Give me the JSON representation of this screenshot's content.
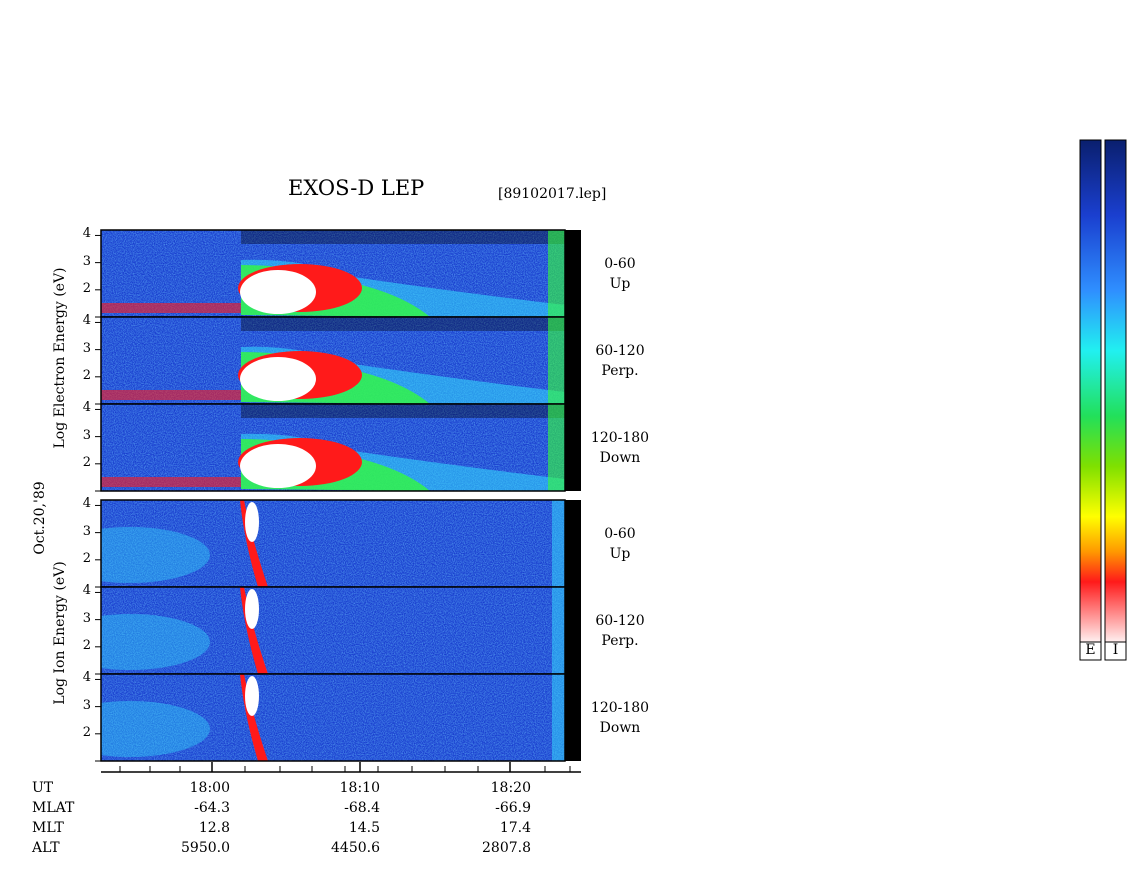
{
  "header": {
    "title": "EXOS-D LEP",
    "filename": "[89102017.lep]"
  },
  "left_labels": {
    "electron": "Log Electron Energy (eV)",
    "date": "Oct.20,'89",
    "ion": "Log Ion Energy (eV)"
  },
  "panels": [
    {
      "species": "electron",
      "range": "0-60",
      "dir": "Up"
    },
    {
      "species": "electron",
      "range": "60-120",
      "dir": "Perp."
    },
    {
      "species": "electron",
      "range": "120-180",
      "dir": "Down"
    },
    {
      "species": "ion",
      "range": "0-60",
      "dir": "Up"
    },
    {
      "species": "ion",
      "range": "60-120",
      "dir": "Perp."
    },
    {
      "species": "ion",
      "range": "120-180",
      "dir": "Down"
    }
  ],
  "yticks": [
    "4",
    "3",
    "2"
  ],
  "ephemeris": {
    "labels": [
      "UT",
      "MLAT",
      "MLT",
      "ALT"
    ],
    "columns": [
      {
        "UT": "18:00",
        "MLAT": "-64.3",
        "MLT": "12.8",
        "ALT": "5950.0"
      },
      {
        "UT": "18:10",
        "MLAT": "-68.4",
        "MLT": "14.5",
        "ALT": "4450.6"
      },
      {
        "UT": "18:20",
        "MLAT": "-66.9",
        "MLT": "17.4",
        "ALT": "2807.8"
      }
    ]
  },
  "colorbars": {
    "electron_label": "E",
    "ion_label": "I"
  },
  "colors": {
    "background": "#1a3fcf",
    "dark": "#000000",
    "flux_high": "#ffffff",
    "flux_red": "#ff1a1a",
    "flux_green": "#33ff33",
    "flux_cyan": "#33ddff"
  },
  "chart_data": {
    "type": "heatmap",
    "title": "EXOS-D LEP",
    "x": {
      "label": "UT",
      "range": [
        "17:52",
        "18:26"
      ],
      "ticks": [
        "18:00",
        "18:10",
        "18:20"
      ]
    },
    "y": {
      "unit": "Log Energy (eV)",
      "range": [
        1,
        4.2
      ],
      "ticks": [
        2,
        3,
        4
      ]
    },
    "panels": [
      {
        "species": "electron",
        "pitch_angle": "0-60",
        "direction": "Up"
      },
      {
        "species": "electron",
        "pitch_angle": "60-120",
        "direction": "Perp."
      },
      {
        "species": "electron",
        "pitch_angle": "120-180",
        "direction": "Down"
      },
      {
        "species": "ion",
        "pitch_angle": "0-60",
        "direction": "Up"
      },
      {
        "species": "ion",
        "pitch_angle": "60-120",
        "direction": "Perp."
      },
      {
        "species": "ion",
        "pitch_angle": "120-180",
        "direction": "Down"
      }
    ],
    "colorbar": [
      "white",
      "pink",
      "red",
      "orange",
      "yellow",
      "green",
      "cyan",
      "blue",
      "navy"
    ]
  }
}
